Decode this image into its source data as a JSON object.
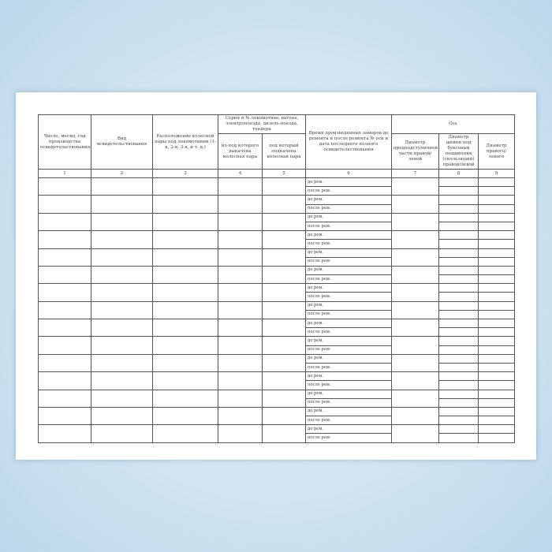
{
  "header": {
    "col1": "Число, месяц, год производства освидетельствования",
    "col2": "Вид освидетельствования",
    "col3": "Расположение колесной пары под локомотивом (1-я, 2-я, 3-я, и т. д.)",
    "group45": "Серия и № локомотива, вагона, электропоезда, дизель-поезда, тендера",
    "col4": "из-под которого выкачена колесная пара",
    "col5": "под который подкачена колесная пара",
    "col6": "Время произведенных замеров до ремонта и после ремонта № оси и дата последнего полного освидетельствования",
    "group789": "Ось",
    "col7": "Диаметр предподступичной части правой/левой",
    "col8": "Диаметр шейки под буксовый подшипник (скользящий) правой/левой",
    "col9": "Диаметр правого/ левого"
  },
  "numbers": [
    "1",
    "2",
    "3",
    "4",
    "5",
    "6",
    "7",
    "8",
    "9"
  ],
  "rows": {
    "before": "до рем.",
    "after": "после рем.",
    "count": 15
  }
}
